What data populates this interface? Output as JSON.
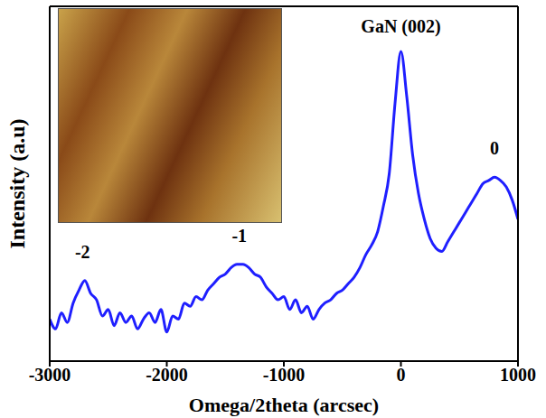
{
  "chart_data": {
    "type": "line",
    "x_label": "Omega/2theta (arcsec)",
    "y_label": "Intensity (a.u)",
    "x": [
      -3000,
      -2950,
      -2900,
      -2850,
      -2800,
      -2750,
      -2700,
      -2650,
      -2600,
      -2550,
      -2500,
      -2450,
      -2400,
      -2350,
      -2300,
      -2250,
      -2200,
      -2150,
      -2100,
      -2050,
      -2000,
      -1950,
      -1900,
      -1850,
      -1800,
      -1750,
      -1700,
      -1650,
      -1600,
      -1550,
      -1500,
      -1450,
      -1400,
      -1350,
      -1300,
      -1250,
      -1200,
      -1150,
      -1100,
      -1050,
      -1000,
      -950,
      -900,
      -850,
      -800,
      -750,
      -700,
      -650,
      -600,
      -550,
      -500,
      -450,
      -400,
      -350,
      -300,
      -250,
      -200,
      -150,
      -100,
      -50,
      0,
      50,
      100,
      150,
      200,
      250,
      300,
      350,
      400,
      450,
      500,
      550,
      600,
      650,
      700,
      750,
      800,
      850,
      900,
      950,
      1000
    ],
    "values": [
      13,
      10,
      15,
      12,
      18,
      22,
      25,
      21,
      19,
      14,
      16,
      11,
      15,
      12,
      14,
      10,
      13,
      15,
      12,
      16,
      9,
      14,
      13,
      18,
      17,
      20,
      19,
      22,
      24,
      26,
      27,
      29,
      30,
      30,
      29,
      27,
      26,
      23,
      21,
      19,
      20,
      16,
      19,
      15,
      17,
      13,
      16,
      18,
      19,
      21,
      22,
      24,
      26,
      29,
      33,
      36,
      40,
      48,
      58,
      80,
      96,
      82,
      64,
      52,
      44,
      38,
      35,
      34,
      37,
      40,
      43,
      46,
      49,
      52,
      55,
      56,
      57,
      56,
      54,
      50,
      44
    ],
    "color": "#1f1fff",
    "xlim": [
      -3000,
      1000
    ],
    "xticks": [
      -3000,
      -2000,
      -1000,
      0,
      1000
    ],
    "ylim": [
      0,
      110
    ],
    "tick_labels": "x",
    "annotations": [
      {
        "text": "GaN (002)",
        "x": 0,
        "y": 104
      },
      {
        "text": "0",
        "x": 800,
        "y": 66
      },
      {
        "text": "-1",
        "x": -1380,
        "y": 39
      },
      {
        "text": "-2",
        "x": -2720,
        "y": 34
      }
    ]
  }
}
